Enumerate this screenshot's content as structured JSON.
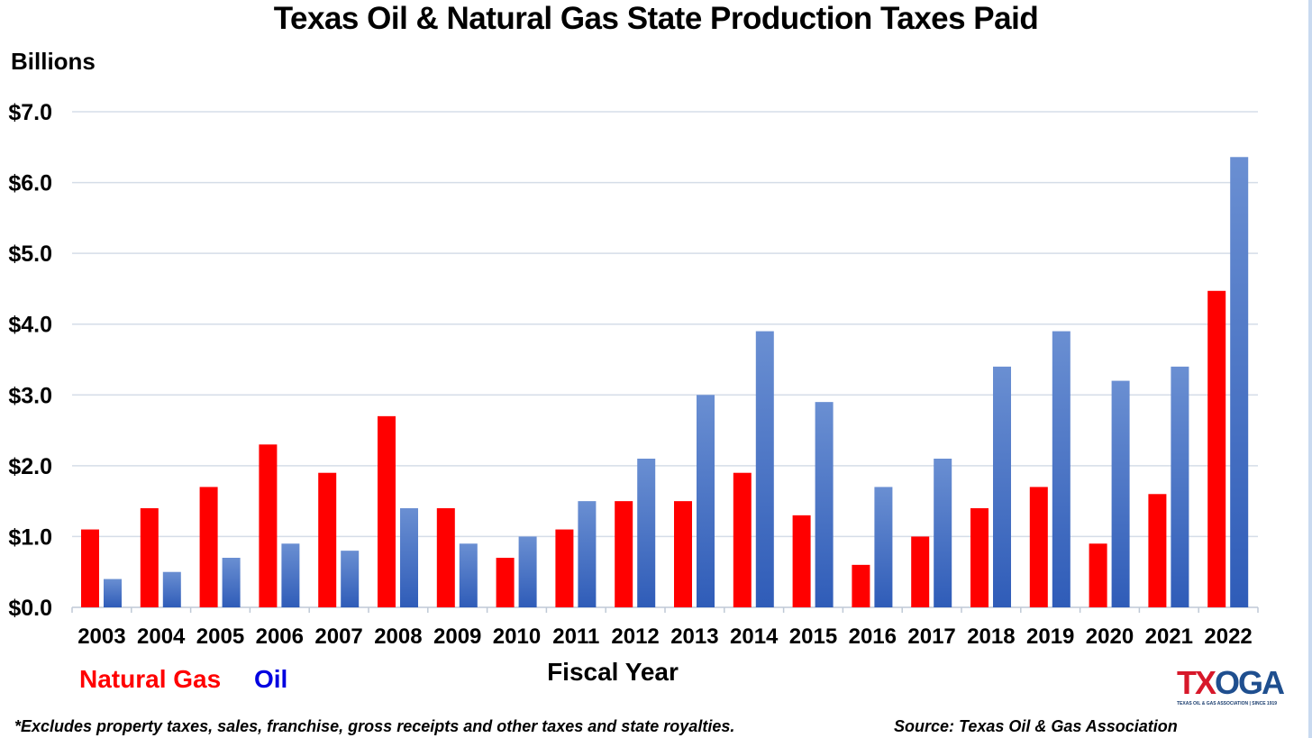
{
  "chart_data": {
    "type": "bar",
    "title": "Texas Oil & Natural Gas State Production Taxes Paid",
    "ylabel": "Billions",
    "xlabel": "Fiscal Year",
    "ylim": [
      0,
      7
    ],
    "yticks": [
      "$0.0",
      "$1.0",
      "$2.0",
      "$3.0",
      "$4.0",
      "$5.0",
      "$6.0",
      "$7.0"
    ],
    "grid": true,
    "categories": [
      "2003",
      "2004",
      "2005",
      "2006",
      "2007",
      "2008",
      "2009",
      "2010",
      "2011",
      "2012",
      "2013",
      "2014",
      "2015",
      "2016",
      "2017",
      "2018",
      "2019",
      "2020",
      "2021",
      "2022"
    ],
    "series": [
      {
        "name": "Natural Gas",
        "color": "#ff0000",
        "values": [
          1.1,
          1.4,
          1.7,
          2.3,
          1.9,
          2.7,
          1.4,
          0.7,
          1.1,
          1.5,
          1.5,
          1.9,
          1.3,
          0.6,
          1.0,
          1.4,
          1.7,
          0.9,
          1.6,
          4.47
        ]
      },
      {
        "name": "Oil",
        "color": "#4472c4",
        "values": [
          0.4,
          0.5,
          0.7,
          0.9,
          0.8,
          1.4,
          0.9,
          1.0,
          1.5,
          2.1,
          3.0,
          3.9,
          2.9,
          1.7,
          2.1,
          3.4,
          3.9,
          3.2,
          3.4,
          6.36
        ]
      }
    ],
    "legend": {
      "placement": "bottom-left",
      "gas_label": "Natural Gas",
      "oil_label": "Oil"
    }
  },
  "footer": {
    "note": "*Excludes property taxes, sales, franchise, gross receipts and other taxes and state royalties.",
    "source": "Source: Texas Oil & Gas Association"
  },
  "logo": {
    "word_tx": "TX",
    "word_oga": "OGA",
    "subtitle": "TEXAS OIL & GAS ASSOCIATION | SINCE 1919",
    "colors": {
      "tx": "#d7182a",
      "oga": "#1f4f8f"
    }
  }
}
